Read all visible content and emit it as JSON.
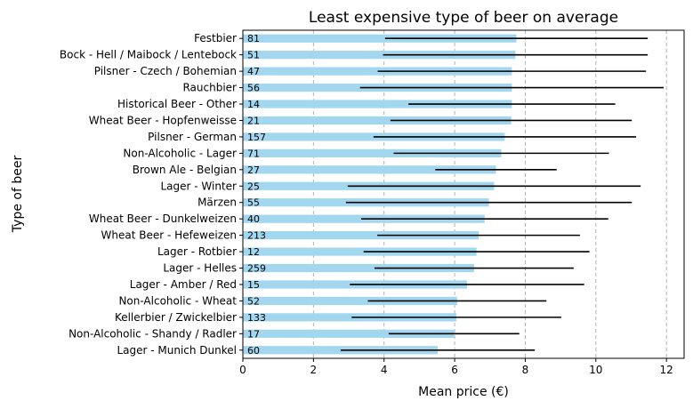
{
  "chart_data": {
    "type": "bar",
    "orientation": "horizontal",
    "title": "Least expensive type of beer on average",
    "xlabel": "Mean price (€)",
    "ylabel": "Type of beer",
    "xlim": [
      0,
      12.5
    ],
    "xticks": [
      0,
      2,
      4,
      6,
      8,
      10,
      12
    ],
    "grid": "vertical dashed",
    "bar_color": "#a3d7ef",
    "error_bar_color": "#000000",
    "categories": [
      "Festbier",
      "Bock - Hell / Maibock / Lentebock",
      "Pilsner - Czech / Bohemian",
      "Rauchbier",
      "Historical Beer - Other",
      "Wheat Beer - Hopfenweisse",
      "Pilsner - German",
      "Non-Alcoholic - Lager",
      "Brown Ale - Belgian",
      "Lager - Winter",
      "Märzen",
      "Wheat Beer - Dunkelweizen",
      "Wheat Beer - Hefeweizen",
      "Lager - Rotbier",
      "Lager - Helles",
      "Lager - Amber / Red",
      "Non-Alcoholic - Wheat",
      "Kellerbier / Zwickelbier",
      "Non-Alcoholic - Shandy / Radler",
      "Lager - Munich Dunkel"
    ],
    "values": [
      7.75,
      7.72,
      7.62,
      7.62,
      7.62,
      7.6,
      7.42,
      7.32,
      7.17,
      7.12,
      6.97,
      6.85,
      6.68,
      6.62,
      6.55,
      6.35,
      6.07,
      6.05,
      5.98,
      5.52
    ],
    "error": [
      3.72,
      3.75,
      3.8,
      4.3,
      2.93,
      3.42,
      3.72,
      3.05,
      1.72,
      4.15,
      4.05,
      3.5,
      2.87,
      3.2,
      2.82,
      3.32,
      2.53,
      2.97,
      1.85,
      2.75
    ],
    "counts": [
      "81",
      "51",
      "47",
      "56",
      "14",
      "21",
      "157",
      "71",
      "27",
      "25",
      "55",
      "40",
      "213",
      "12",
      "259",
      "15",
      "52",
      "133",
      "17",
      "60"
    ]
  }
}
